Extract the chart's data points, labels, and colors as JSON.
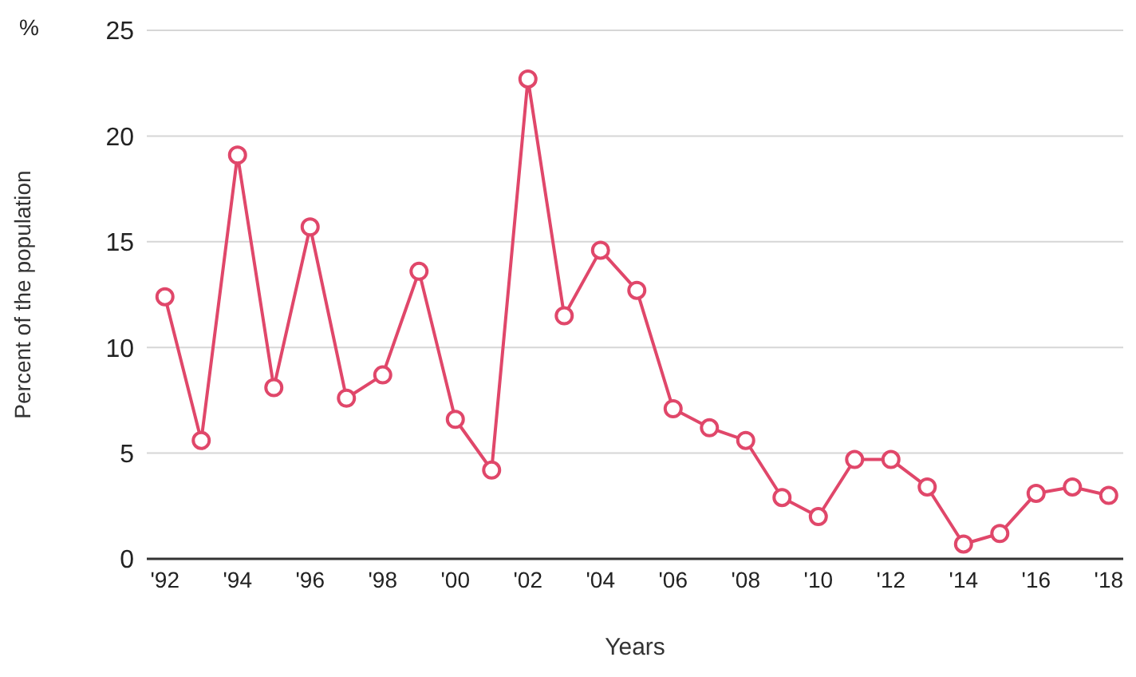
{
  "chart_data": {
    "type": "line",
    "xlabel": "Years",
    "ylabel": "Percent of the population",
    "annotations": [
      "%"
    ],
    "x": [
      1992,
      1993,
      1994,
      1995,
      1996,
      1997,
      1998,
      1999,
      2000,
      2001,
      2002,
      2003,
      2004,
      2005,
      2006,
      2007,
      2008,
      2009,
      2010,
      2011,
      2012,
      2013,
      2014,
      2015,
      2016,
      2017,
      2018
    ],
    "series": [
      {
        "color": "#e0476a",
        "values": [
          12.4,
          5.6,
          19.1,
          8.1,
          15.7,
          7.6,
          8.7,
          13.6,
          6.6,
          4.2,
          22.7,
          11.5,
          14.6,
          12.7,
          7.1,
          6.2,
          5.6,
          2.9,
          2.0,
          4.7,
          4.7,
          3.4,
          0.7,
          1.2,
          3.1,
          3.4,
          3.0
        ]
      }
    ],
    "xlim": [
      1991.5,
      2018.4
    ],
    "xticks": [
      {
        "value": 1992,
        "label": "'92"
      },
      {
        "value": 1994,
        "label": "'94"
      },
      {
        "value": 1996,
        "label": "'96"
      },
      {
        "value": 1998,
        "label": "'98"
      },
      {
        "value": 2000,
        "label": "'00"
      },
      {
        "value": 2002,
        "label": "'02"
      },
      {
        "value": 2004,
        "label": "'04"
      },
      {
        "value": 2006,
        "label": "'06"
      },
      {
        "value": 2008,
        "label": "'08"
      },
      {
        "value": 2010,
        "label": "'10"
      },
      {
        "value": 2012,
        "label": "'12"
      },
      {
        "value": 2014,
        "label": "'14"
      },
      {
        "value": 2016,
        "label": "'16"
      },
      {
        "value": 2018,
        "label": "'18"
      }
    ],
    "ylim": [
      0,
      25
    ],
    "yticks": [
      0,
      5,
      10,
      15,
      20,
      25
    ],
    "grid": "y",
    "legend": false,
    "marker": "circle",
    "line_style": "solid"
  }
}
